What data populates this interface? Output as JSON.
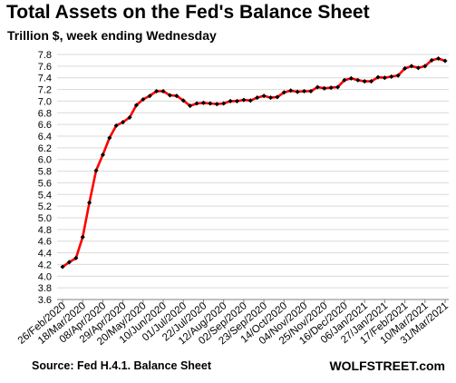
{
  "title": "Total Assets on the Fed's Balance Sheet",
  "subtitle": "Trillion $, week ending Wednesday",
  "source": "Source: Fed H.4.1. Balance Sheet",
  "brand": "WOLFSTREET.com",
  "colors": {
    "line": "#ff0000",
    "marker": "#000000",
    "grid": "#d9d9d9",
    "axis": "#808080"
  },
  "chart_data": {
    "type": "line",
    "title": "Total Assets on the Fed's Balance Sheet",
    "subtitle": "Trillion $, week ending Wednesday",
    "xlabel": "",
    "ylabel": "",
    "ylim": [
      3.6,
      7.8
    ],
    "yticks": [
      "3.6",
      "3.8",
      "4.0",
      "4.2",
      "4.4",
      "4.6",
      "4.8",
      "5.0",
      "5.2",
      "5.4",
      "5.6",
      "5.8",
      "6.0",
      "6.2",
      "6.4",
      "6.6",
      "6.8",
      "7.0",
      "7.2",
      "7.4",
      "7.6",
      "7.8"
    ],
    "xtick_labels": [
      "26/Feb/2020",
      "18/Mar/2020",
      "08/Apr/2020",
      "29/Apr/2020",
      "20/May/2020",
      "10/Jun/2020",
      "01/Jul/2020",
      "22/Jul/2020",
      "12/Aug/2020",
      "02/Sep/2020",
      "23/Sep/2020",
      "14/Oct/2020",
      "04/Nov/2020",
      "25/Nov/2020",
      "16/Dec/2020",
      "06/Jan/2021",
      "27/Jan/2021",
      "17/Feb/2021",
      "10/Mar/2021",
      "31/Mar/2021"
    ],
    "grid": "horizontal",
    "series": [
      {
        "name": "",
        "values": [
          4.16,
          4.24,
          4.31,
          4.67,
          5.26,
          5.81,
          6.08,
          6.37,
          6.58,
          6.64,
          6.72,
          6.93,
          7.03,
          7.09,
          7.17,
          7.17,
          7.1,
          7.09,
          7.01,
          6.92,
          6.96,
          6.97,
          6.96,
          6.95,
          6.96,
          7.0,
          7.0,
          7.02,
          7.01,
          7.06,
          7.09,
          7.06,
          7.07,
          7.15,
          7.18,
          7.16,
          7.17,
          7.17,
          7.24,
          7.22,
          7.23,
          7.24,
          7.36,
          7.39,
          7.36,
          7.34,
          7.34,
          7.41,
          7.4,
          7.42,
          7.44,
          7.56,
          7.6,
          7.57,
          7.6,
          7.7,
          7.73,
          7.69
        ]
      }
    ]
  }
}
